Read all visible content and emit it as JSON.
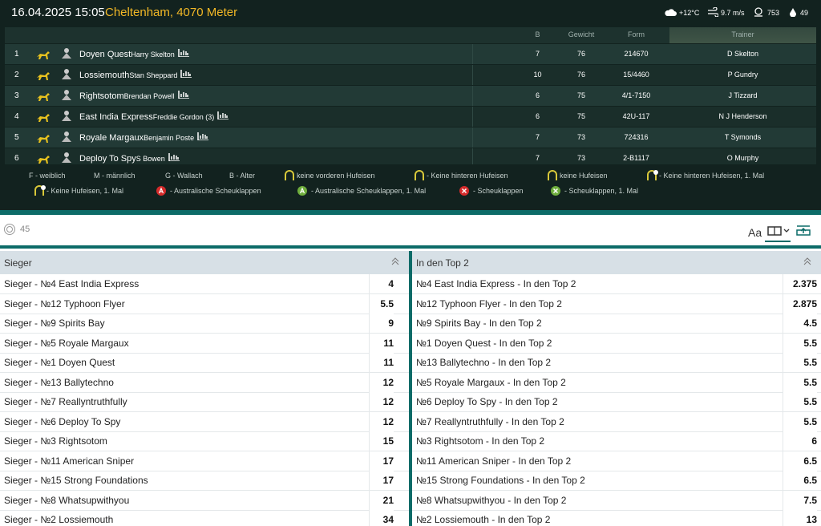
{
  "header": {
    "date": "16.04.2025 15:05",
    "venue": "Cheltenham, 4070 Meter",
    "weather": {
      "temp": "+12°C",
      "wind": "9.7 m/s",
      "pressure": "753",
      "humidity": "49"
    }
  },
  "table": {
    "columns": [
      "B",
      "Gewicht",
      "Form",
      "Trainer"
    ],
    "rows": [
      {
        "number": "1",
        "horse": "Doyen Quest",
        "jockey": "Harry Skelton",
        "b": "7",
        "weight": "76",
        "form": "214670",
        "trainer": "D Skelton"
      },
      {
        "number": "2",
        "horse": "Lossiemouth",
        "jockey": "Stan Sheppard",
        "b": "10",
        "weight": "76",
        "form": "15/4460",
        "trainer": "P Gundry"
      },
      {
        "number": "3",
        "horse": "Rightsotom",
        "jockey": "Brendan Powell",
        "b": "6",
        "weight": "75",
        "form": "4/1-7150",
        "trainer": "J Tizzard"
      },
      {
        "number": "4",
        "horse": "East India Express",
        "jockey": "Freddie Gordon (3)",
        "b": "6",
        "weight": "75",
        "form": "42U-117",
        "trainer": "N J Henderson"
      },
      {
        "number": "5",
        "horse": "Royale Margaux",
        "jockey": "Benjamin Poste",
        "b": "7",
        "weight": "73",
        "form": "724316",
        "trainer": "T Symonds"
      },
      {
        "number": "6",
        "horse": "Deploy To Spy",
        "jockey": "S Bowen",
        "b": "7",
        "weight": "73",
        "form": "2-B1117",
        "trainer": "O Murphy"
      }
    ]
  },
  "legend": [
    "F - weiblich",
    "M - männlich",
    "G - Wallach",
    "B - Alter",
    "keine vorderen Hufeisen",
    "- Keine hinteren Hufeisen",
    "keine Hufeisen",
    "- Keine hinteren Hufeisen, 1. Mal",
    "- Keine Hufeisen, 1. Mal",
    "- Australische Scheuklappen",
    "- Australische Scheuklappen, 1. Mal",
    "- Scheuklappen",
    "- Scheuklappen, 1. Mal"
  ],
  "toolbar": {
    "count": "45"
  },
  "markets": [
    {
      "title": "Sieger",
      "rows": [
        {
          "name": "Sieger - №4 East India Express",
          "odds": 4
        },
        {
          "name": "Sieger - №12 Typhoon Flyer",
          "odds": 5.5
        },
        {
          "name": "Sieger - №9 Spirits Bay",
          "odds": 9
        },
        {
          "name": "Sieger - №5 Royale Margaux",
          "odds": 11
        },
        {
          "name": "Sieger - №1 Doyen Quest",
          "odds": 11
        },
        {
          "name": "Sieger - №13 Ballytechno",
          "odds": 12
        },
        {
          "name": "Sieger - №7 Reallyntruthfully",
          "odds": 12
        },
        {
          "name": "Sieger - №6 Deploy To Spy",
          "odds": 12
        },
        {
          "name": "Sieger - №3 Rightsotom",
          "odds": 15
        },
        {
          "name": "Sieger - №11 American Sniper",
          "odds": 17
        },
        {
          "name": "Sieger - №15 Strong Foundations",
          "odds": 17
        },
        {
          "name": "Sieger - №8 Whatsupwithyou",
          "odds": 21
        },
        {
          "name": "Sieger - №2 Lossiemouth",
          "odds": 34
        }
      ]
    },
    {
      "title": "In den Top 2",
      "rows": [
        {
          "name": "№4 East India Express - In den Top 2",
          "odds": 2.375
        },
        {
          "name": "№12 Typhoon Flyer - In den Top 2",
          "odds": 2.875
        },
        {
          "name": "№9 Spirits Bay - In den Top 2",
          "odds": 4.5
        },
        {
          "name": "№1 Doyen Quest - In den Top 2",
          "odds": 5.5
        },
        {
          "name": "№13 Ballytechno - In den Top 2",
          "odds": 5.5
        },
        {
          "name": "№5 Royale Margaux - In den Top 2",
          "odds": 5.5
        },
        {
          "name": "№6 Deploy To Spy - In den Top 2",
          "odds": 5.5
        },
        {
          "name": "№7 Reallyntruthfully - In den Top 2",
          "odds": 5.5
        },
        {
          "name": "№3 Rightsotom - In den Top 2",
          "odds": 6
        },
        {
          "name": "№11 American Sniper - In den Top 2",
          "odds": 6.5
        },
        {
          "name": "№15 Strong Foundations - In den Top 2",
          "odds": 6.5
        },
        {
          "name": "№8 Whatsupwithyou - In den Top 2",
          "odds": 7.5
        },
        {
          "name": "№2 Lossiemouth - In den Top 2",
          "odds": 13
        }
      ]
    }
  ]
}
